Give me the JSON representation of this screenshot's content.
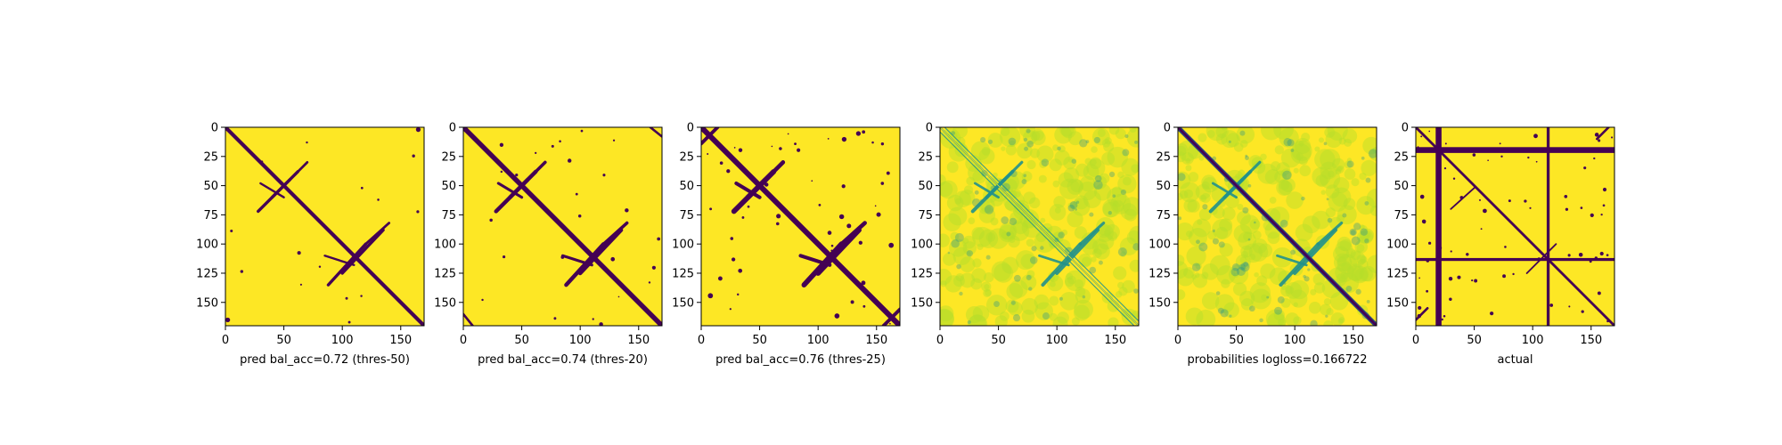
{
  "chart_data": [
    {
      "type": "heatmap",
      "xlabel": "pred bal_acc=0.72 (thres-50)",
      "ylabel": "",
      "matrix_size": 170,
      "xlim": [
        0,
        170
      ],
      "ylim": [
        170,
        0
      ],
      "xticks": [
        "0",
        "50",
        "100",
        "150"
      ],
      "yticks": [
        "0",
        "25",
        "50",
        "75",
        "100",
        "125",
        "150"
      ],
      "colormap": "viridis-binary",
      "values": "binary contact map: main diagonal band, lobes near (50,50) and (110,110), dense yellow background",
      "grid": false
    },
    {
      "type": "heatmap",
      "xlabel": "pred bal_acc=0.74 (thres-20)",
      "ylabel": "",
      "matrix_size": 170,
      "xlim": [
        0,
        170
      ],
      "ylim": [
        170,
        0
      ],
      "xticks": [
        "0",
        "50",
        "100",
        "150"
      ],
      "yticks": [
        "0",
        "25",
        "50",
        "75",
        "100",
        "125",
        "150"
      ],
      "colormap": "viridis-binary",
      "grid": false
    },
    {
      "type": "heatmap",
      "xlabel": "pred bal_acc=0.76 (thres-25)",
      "ylabel": "",
      "matrix_size": 170,
      "xlim": [
        0,
        170
      ],
      "ylim": [
        170,
        0
      ],
      "xticks": [
        "0",
        "50",
        "100",
        "150"
      ],
      "yticks": [
        "0",
        "25",
        "50",
        "75",
        "100",
        "125",
        "150"
      ],
      "colormap": "viridis-binary",
      "grid": false
    },
    {
      "type": "heatmap",
      "xlabel": "",
      "ylabel": "",
      "matrix_size": 170,
      "xlim": [
        0,
        170
      ],
      "ylim": [
        170,
        0
      ],
      "xticks": [
        "0",
        "50",
        "100",
        "150"
      ],
      "yticks": [
        "0",
        "25",
        "50",
        "75",
        "100",
        "125",
        "150"
      ],
      "colormap": "viridis",
      "grid": false
    },
    {
      "type": "heatmap",
      "xlabel": "probabilities logloss=0.166722",
      "ylabel": "",
      "matrix_size": 170,
      "xlim": [
        0,
        170
      ],
      "ylim": [
        170,
        0
      ],
      "xticks": [
        "0",
        "50",
        "100",
        "150"
      ],
      "yticks": [
        "0",
        "25",
        "50",
        "75",
        "100",
        "125",
        "150"
      ],
      "colormap": "viridis",
      "grid": false
    },
    {
      "type": "heatmap",
      "xlabel": "actual",
      "ylabel": "",
      "matrix_size": 170,
      "xlim": [
        0,
        170
      ],
      "ylim": [
        170,
        0
      ],
      "xticks": [
        "0",
        "50",
        "100",
        "150"
      ],
      "yticks": [
        "0",
        "25",
        "50",
        "75",
        "100",
        "125",
        "150"
      ],
      "colormap": "viridis-binary",
      "grid": false
    }
  ],
  "colors": {
    "high": "#fde725",
    "low": "#440154",
    "mid": "#21918c",
    "light": "#b5de2b"
  }
}
